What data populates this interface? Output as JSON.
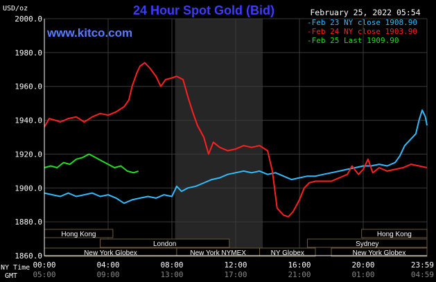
{
  "chart_data": {
    "type": "line",
    "title": "24 Hour Spot Gold (Bid)",
    "watermark": "www.kitco.com",
    "date_stamp": "February 25, 2022 05:54",
    "ylabel": "USD/oz",
    "ylim": [
      1860,
      2000
    ],
    "y_ticks": [
      "2000.0",
      "1980.0",
      "1960.0",
      "1940.0",
      "1920.0",
      "1900.0",
      "1880.0",
      "1860.0"
    ],
    "xlim": [
      0,
      24
    ],
    "x_tick_hours": [
      0,
      4,
      8,
      12,
      16,
      20,
      24
    ],
    "x_row_label": "NY Time",
    "x_ticks": [
      "00:00",
      "04:00",
      "08:00",
      "12:00",
      "16:00",
      "20:00",
      "23:59"
    ],
    "gmt_row_label": "GMT",
    "gmt_ticks": [
      "05:00",
      "09:00",
      "13:00",
      "17:00",
      "21:00",
      "01:00",
      "04:59"
    ],
    "grid": true,
    "shaded_region_hours": [
      8.2,
      13.7
    ],
    "legend_position": "top-right",
    "background_color": "#000000",
    "grid_color": "#3a3a3a",
    "axis_color": "#ffffff",
    "title_color": "#3c3cff",
    "watermark_color": "#5a7cff",
    "session_bar_color": "#6e5a3c",
    "series": [
      {
        "name": "Feb 23 NY close 1908.90",
        "color": "#33bbff",
        "x": [
          0,
          0.5,
          1,
          1.5,
          2,
          2.5,
          3,
          3.5,
          4,
          4.5,
          5,
          5.5,
          6,
          6.5,
          7,
          7.5,
          8,
          8.3,
          8.6,
          9,
          9.5,
          10,
          10.5,
          11,
          11.5,
          12,
          12.5,
          13,
          13.5,
          14,
          14.5,
          15,
          15.5,
          16,
          16.5,
          17,
          17.5,
          18,
          18.5,
          19,
          19.5,
          20,
          20.5,
          21,
          21.5,
          22,
          22.3,
          22.6,
          23,
          23.3,
          23.5,
          23.7,
          23.9,
          24
        ],
        "y": [
          1897,
          1896,
          1895,
          1897,
          1895,
          1896,
          1897,
          1895,
          1896,
          1894,
          1891,
          1893,
          1894,
          1895,
          1894,
          1896,
          1895,
          1901,
          1898,
          1900,
          1901,
          1903,
          1905,
          1906,
          1908,
          1909,
          1910,
          1909,
          1910,
          1908,
          1909,
          1907,
          1905,
          1906,
          1907,
          1907,
          1908,
          1909,
          1910,
          1911,
          1912,
          1913,
          1913,
          1914,
          1913,
          1915,
          1919,
          1925,
          1929,
          1932,
          1940,
          1946,
          1942,
          1937
        ]
      },
      {
        "name": "Feb 24 NY close 1903.90",
        "color": "#ff2020",
        "x": [
          0,
          0.3,
          0.7,
          1,
          1.5,
          2,
          2.5,
          3,
          3.5,
          4,
          4.5,
          5,
          5.3,
          5.5,
          5.8,
          6,
          6.3,
          6.6,
          7,
          7.3,
          7.6,
          8,
          8.3,
          8.7,
          9,
          9.3,
          9.6,
          10,
          10.3,
          10.6,
          11,
          11.5,
          12,
          12.5,
          13,
          13.5,
          14,
          14.3,
          14.6,
          15,
          15.3,
          15.6,
          16,
          16.3,
          16.6,
          17,
          17.5,
          18,
          18.5,
          19,
          19.3,
          19.7,
          20,
          20.3,
          20.6,
          21,
          21.5,
          22,
          22.5,
          23,
          23.5,
          24
        ],
        "y": [
          1936,
          1941,
          1940,
          1939,
          1941,
          1942,
          1939,
          1942,
          1944,
          1943,
          1945,
          1948,
          1952,
          1960,
          1968,
          1972,
          1974,
          1971,
          1966,
          1960,
          1964,
          1965,
          1966,
          1964,
          1954,
          1945,
          1937,
          1930,
          1920,
          1927,
          1924,
          1922,
          1923,
          1925,
          1924,
          1925,
          1922,
          1910,
          1888,
          1884,
          1883,
          1886,
          1893,
          1900,
          1903,
          1904,
          1904,
          1904,
          1906,
          1908,
          1913,
          1908,
          1911,
          1917,
          1909,
          1912,
          1910,
          1911,
          1912,
          1914,
          1913,
          1912
        ]
      },
      {
        "name": "Feb 25 Last 1909.90",
        "color": "#22dd22",
        "x": [
          0,
          0.4,
          0.8,
          1.2,
          1.6,
          2,
          2.4,
          2.8,
          3.2,
          3.6,
          4,
          4.4,
          4.8,
          5.2,
          5.6,
          5.9
        ],
        "y": [
          1912,
          1913,
          1912,
          1915,
          1914,
          1917,
          1918,
          1920,
          1918,
          1916,
          1914,
          1912,
          1913,
          1910,
          1909,
          1910
        ]
      }
    ],
    "markets": [
      {
        "label": "Hong Kong",
        "row": 0,
        "start": 0,
        "end": 4.3
      },
      {
        "label": "London",
        "row": 1,
        "start": 3.5,
        "end": 11.6
      },
      {
        "label": "New York Globex",
        "row": 2,
        "start": 0,
        "end": 8.3
      },
      {
        "label": "New York NYMEX",
        "row": 2,
        "start": 8.3,
        "end": 13.5
      },
      {
        "label": "NY Globex",
        "row": 2,
        "start": 13.5,
        "end": 17.0
      },
      {
        "label": "Hong Kong",
        "row": 0,
        "start": 19.9,
        "end": 24
      },
      {
        "label": "Sydney",
        "row": 1,
        "start": 16.5,
        "end": 24
      },
      {
        "label": "New York Globex",
        "row": 2,
        "start": 18.0,
        "end": 24
      }
    ]
  }
}
